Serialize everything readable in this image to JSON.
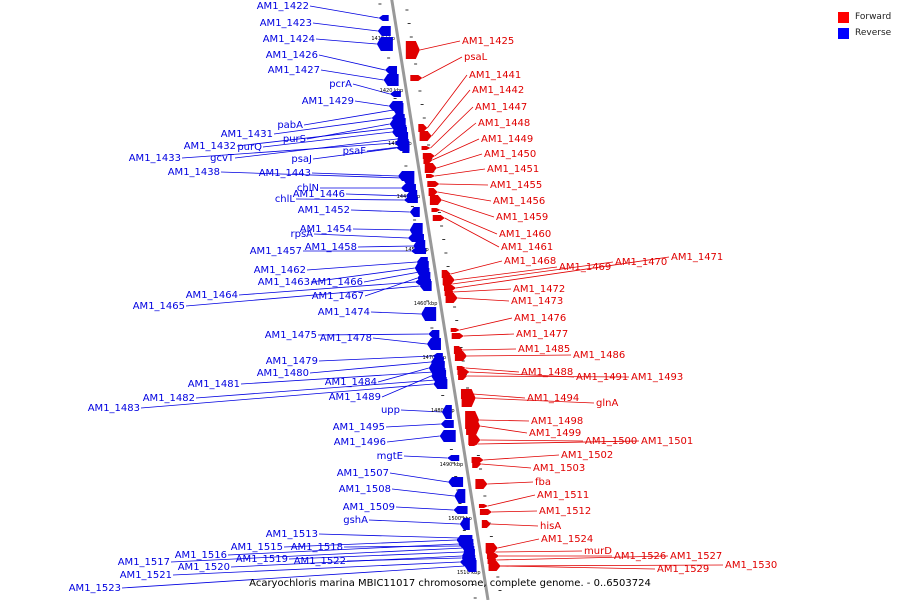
{
  "legend": {
    "forward": {
      "label": "Forward",
      "color": "#ff0000"
    },
    "reverse": {
      "label": "Reverse",
      "color": "#0000ff"
    }
  },
  "caption": "Acaryochloris marina MBIC11017 chromosome, complete genome. - 0..6503724",
  "colors": {
    "forward": "#e00000",
    "reverse": "#0000e0",
    "line": "#999999",
    "tick": "#000000"
  },
  "scale_labels": [
    "1410 kbp",
    "1420 kbp",
    "1430 kbp",
    "1440 kbp",
    "1450 kbp",
    "1460 kbp",
    "1470 kbp",
    "1480 kbp",
    "1490 kbp",
    "1500 kbp",
    "1510 kbp"
  ],
  "reverse_genes": [
    "AM1_1422",
    "AM1_1423",
    "AM1_1424",
    "AM1_1426",
    "AM1_1427",
    "pcrA",
    "AM1_1429",
    "pabA",
    "AM1_1431",
    "purS",
    "AM1_1432",
    "purQ",
    "gcvT",
    "AM1_1433",
    "psaF",
    "psaJ",
    "AM1_1443",
    "AM1_1438",
    "chlN",
    "AM1_1446",
    "chlL",
    "AM1_1452",
    "AM1_1454",
    "rpsA",
    "AM1_1458",
    "AM1_1457",
    "AM1_1462",
    "AM1_1463",
    "AM1_1466",
    "AM1_1467",
    "AM1_1464",
    "AM1_1465",
    "AM1_1474",
    "AM1_1475",
    "AM1_1478",
    "AM1_1479",
    "AM1_1480",
    "AM1_1484",
    "AM1_1481",
    "AM1_1489",
    "AM1_1482",
    "AM1_1483",
    "upp",
    "AM1_1495",
    "AM1_1496",
    "mgtE",
    "AM1_1507",
    "AM1_1508",
    "AM1_1509",
    "gshA",
    "AM1_1513",
    "AM1_1515",
    "AM1_1518",
    "AM1_1516",
    "AM1_1519",
    "AM1_1522",
    "AM1_1517",
    "AM1_1520",
    "AM1_1521",
    "AM1_1523"
  ],
  "forward_genes": [
    "AM1_1425",
    "psaL",
    "AM1_1441",
    "AM1_1442",
    "AM1_1447",
    "AM1_1448",
    "AM1_1449",
    "AM1_1450",
    "AM1_1451",
    "AM1_1455",
    "AM1_1456",
    "AM1_1459",
    "AM1_1460",
    "AM1_1461",
    "AM1_1468",
    "AM1_1469",
    "AM1_1470",
    "AM1_1471",
    "AM1_1472",
    "AM1_1473",
    "AM1_1476",
    "AM1_1477",
    "AM1_1485",
    "AM1_1486",
    "AM1_1488",
    "AM1_1491",
    "AM1_1493",
    "AM1_1494",
    "glnA",
    "AM1_1498",
    "AM1_1499",
    "AM1_1500",
    "AM1_1501",
    "AM1_1502",
    "AM1_1503",
    "fba",
    "AM1_1511",
    "AM1_1512",
    "hisA",
    "AM1_1524",
    "murD",
    "AM1_1526",
    "AM1_1527",
    "AM1_1529",
    "AM1_1530"
  ]
}
